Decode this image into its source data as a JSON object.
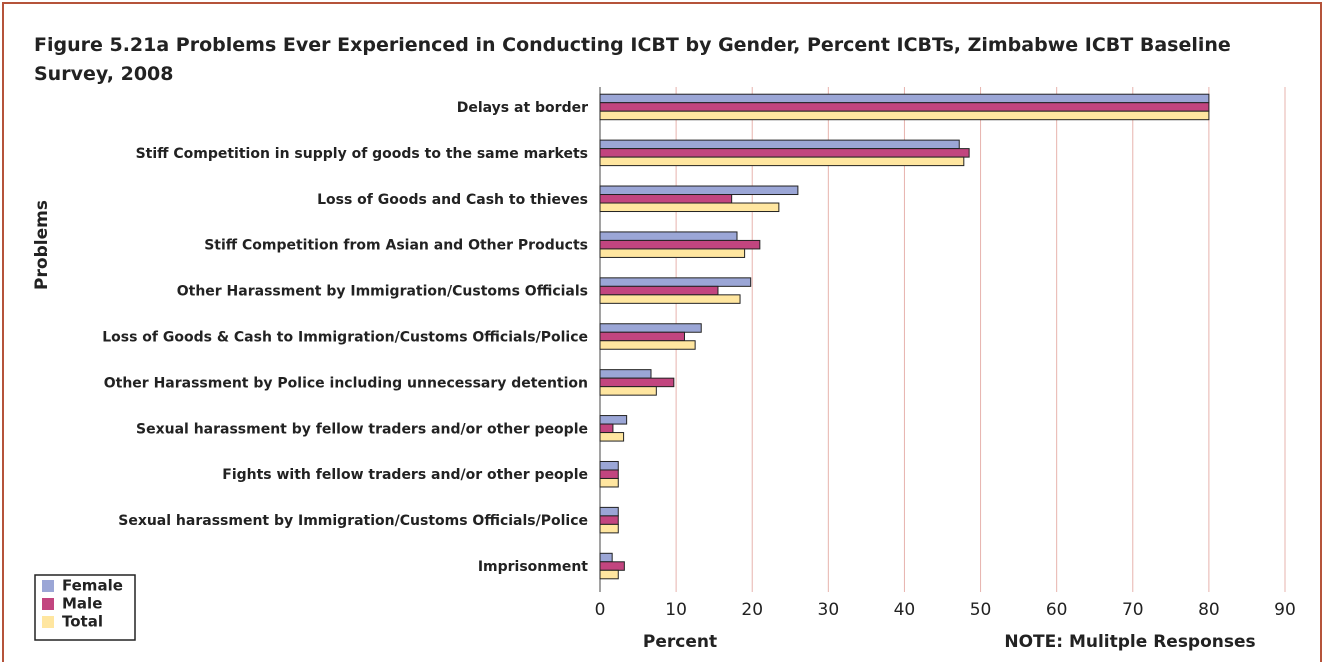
{
  "chart_data": {
    "type": "barh",
    "title": "Figure 5.21a Problems Ever Experienced in Conducting ICBT by Gender, Percent ICBTs, Zimbabwe ICBT Baseline Survey, 2008",
    "xlabel": "Percent",
    "ylabel": "Problems",
    "note": "NOTE: Mulitple Responses",
    "categories": [
      "Delays at border",
      "Stiff Competition in supply of goods to the same markets",
      "Loss of Goods and Cash to thieves",
      "Stiff Competition from Asian and Other Products",
      "Other Harassment by Immigration/Customs Officials",
      "Loss of Goods & Cash to Immigration/Customs Officials/Police",
      "Other Harassment by Police including unnecessary detention",
      "Sexual harassment by fellow traders and/or other people",
      "Fights with fellow traders and/or other people",
      "Sexual harassment by Immigration/Customs Officials/Police",
      "Imprisonment"
    ],
    "series": [
      {
        "name": "Female",
        "color": "#9ba6d6",
        "values": [
          80,
          47.2,
          26,
          18,
          19.8,
          13.3,
          6.7,
          3.5,
          2.4,
          2.4,
          1.6
        ]
      },
      {
        "name": "Male",
        "color": "#c2457f",
        "values": [
          80,
          48.5,
          17.3,
          21,
          15.5,
          11.1,
          9.7,
          1.7,
          2.4,
          2.4,
          3.2
        ]
      },
      {
        "name": "Total",
        "color": "#ffe6a0",
        "values": [
          80,
          47.8,
          23.5,
          19,
          18.4,
          12.5,
          7.4,
          3.1,
          2.4,
          2.4,
          2.4
        ]
      }
    ],
    "xlim": [
      0,
      90
    ],
    "xticks": [
      0,
      10,
      20,
      30,
      40,
      50,
      60,
      70,
      80,
      90
    ],
    "grid": true,
    "legend": "lower left"
  }
}
